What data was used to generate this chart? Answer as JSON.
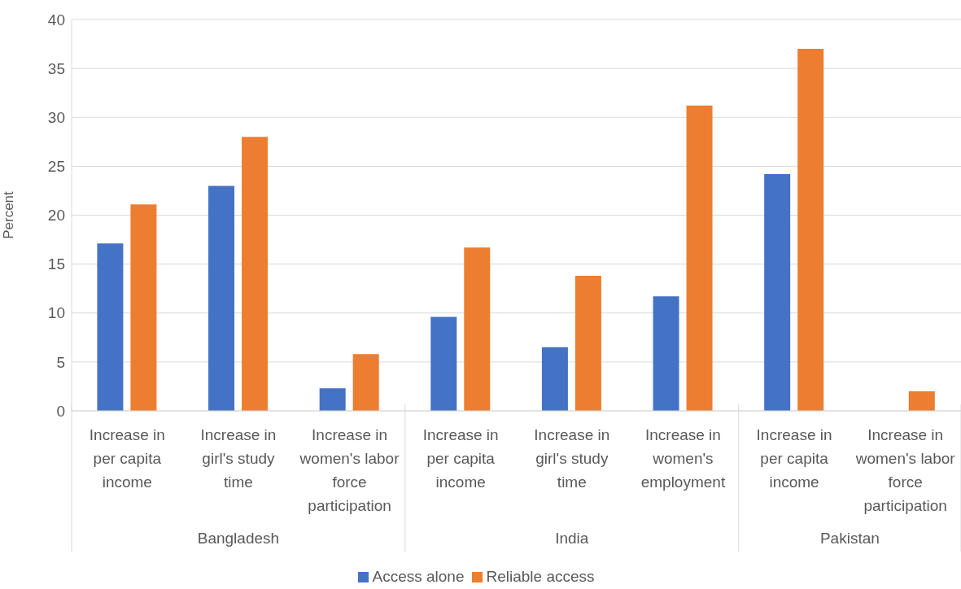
{
  "chart_data": {
    "type": "bar",
    "ylabel": "Percent",
    "categories": [
      "Increase in per capita income",
      "Increase in girl's study time",
      "Increase in women's labor force participation",
      "Increase in per capita income",
      "Increase in girl's study time",
      "Increase in women's employment",
      "Increase in per capita income",
      "Increase in women's labor force participation"
    ],
    "series": [
      {
        "name": "Access alone",
        "color": "#4472c4",
        "values": [
          17.1,
          23.0,
          2.3,
          9.6,
          6.5,
          11.7,
          24.2,
          null
        ]
      },
      {
        "name": "Reliable access",
        "color": "#ed7d31",
        "values": [
          21.1,
          28.0,
          5.8,
          16.7,
          13.8,
          31.2,
          37.0,
          2.0
        ]
      }
    ],
    "annotations": [
      "Bangladesh",
      "India",
      "Pakistan"
    ],
    "ylim": [
      0,
      40
    ],
    "yticks": [
      0,
      5,
      10,
      15,
      20,
      25,
      30,
      35,
      40
    ],
    "grid": "y",
    "legend": "bottom"
  }
}
